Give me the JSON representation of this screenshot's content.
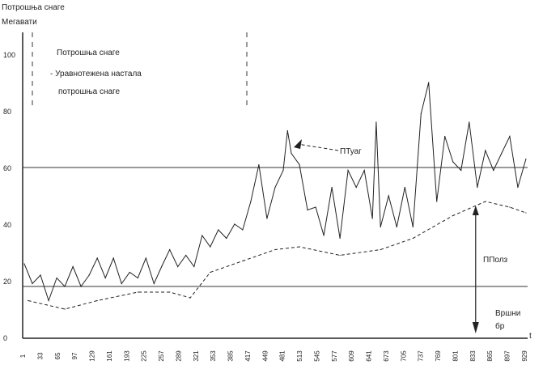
{
  "chart_data": {
    "type": "line",
    "ylabel_lines": [
      "Потрошња снаге",
      "Мегавати"
    ],
    "xlabel": "t",
    "ylim": [
      0,
      110
    ],
    "xlim": [
      1,
      940
    ],
    "yticks": [
      0,
      20,
      40,
      60,
      80,
      100
    ],
    "xticks": [
      1,
      33,
      65,
      97,
      129,
      161,
      193,
      225,
      257,
      289,
      321,
      353,
      385,
      417,
      449,
      481,
      513,
      545,
      577,
      609,
      641,
      673,
      705,
      737,
      769,
      801,
      833,
      865,
      897,
      929
    ],
    "grid": false,
    "legend": {
      "position": "top-left",
      "entries": [
        "Потрошња снаге",
        "- Уравнотежена настала",
        "потрошња снаге"
      ]
    },
    "reference_lines": [
      60,
      18
    ],
    "series": [
      {
        "style": "solid",
        "x": [
          4,
          19,
          34,
          49,
          64,
          79,
          94,
          109,
          124,
          139,
          154,
          169,
          184,
          199,
          214,
          229,
          244,
          258,
          273,
          288,
          303,
          318,
          333,
          348,
          363,
          378,
          393,
          408,
          423,
          438,
          453,
          468,
          483,
          491,
          498,
          513,
          528,
          543,
          558,
          573,
          588,
          603,
          618,
          633,
          648,
          655,
          663,
          678,
          693,
          708,
          723,
          738,
          752,
          767,
          782,
          797,
          812,
          827,
          842,
          857,
          872,
          887,
          902,
          917,
          932
        ],
        "values": [
          26,
          19,
          22,
          13,
          21,
          18,
          25,
          18,
          22,
          28,
          21,
          28,
          19,
          23,
          21,
          28,
          19,
          25,
          31,
          25,
          29,
          25,
          36,
          32,
          38,
          35,
          40,
          38,
          48,
          61,
          42,
          53,
          59,
          73,
          65,
          61,
          45,
          46,
          36,
          53,
          35,
          59,
          53,
          59,
          42,
          76,
          39,
          50,
          39,
          53,
          39,
          79,
          90,
          48,
          71,
          62,
          59,
          76,
          53,
          66,
          59,
          65,
          71,
          53,
          63
        ]
      },
      {
        "style": "dashed",
        "x": [
          11,
          79,
          139,
          214,
          273,
          311,
          348,
          408,
          468,
          513,
          588,
          663,
          723,
          797,
          857,
          902,
          932
        ],
        "values": [
          13,
          10,
          13,
          16,
          16,
          14,
          23,
          27,
          31,
          32,
          29,
          31,
          35,
          43,
          48,
          46,
          44
        ]
      }
    ],
    "annotations": {
      "peak_label": "ПТуаг",
      "range_label": "ППолз",
      "base_label_lines": [
        "Вршни",
        "бр"
      ],
      "arrow_at_x": 839
    }
  }
}
